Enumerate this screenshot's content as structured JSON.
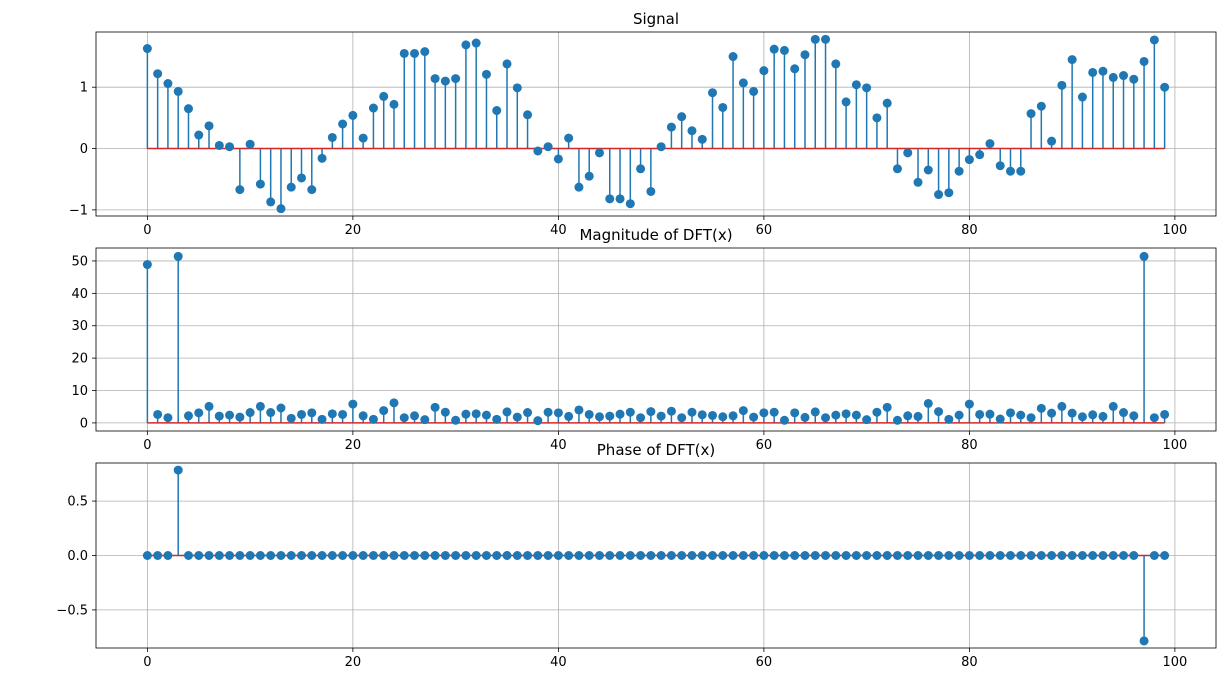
{
  "chart_data": [
    {
      "type": "stem",
      "title": "Signal",
      "xlim": [
        -5,
        104
      ],
      "ylim": [
        -1.1,
        1.9
      ],
      "xticks": [
        0,
        20,
        40,
        60,
        80,
        100
      ],
      "yticks": [
        -1,
        0,
        1
      ],
      "grid": true,
      "colors": {
        "marker": "#1f77b4",
        "stem": "#1f77b4",
        "baseline": "#d62728"
      },
      "x": [
        0,
        1,
        2,
        3,
        4,
        5,
        6,
        7,
        8,
        9,
        10,
        11,
        12,
        13,
        14,
        15,
        16,
        17,
        18,
        19,
        20,
        21,
        22,
        23,
        24,
        25,
        26,
        27,
        28,
        29,
        30,
        31,
        32,
        33,
        34,
        35,
        36,
        37,
        38,
        39,
        40,
        41,
        42,
        43,
        44,
        45,
        46,
        47,
        48,
        49,
        50,
        51,
        52,
        53,
        54,
        55,
        56,
        57,
        58,
        59,
        60,
        61,
        62,
        63,
        64,
        65,
        66,
        67,
        68,
        69,
        70,
        71,
        72,
        73,
        74,
        75,
        76,
        77,
        78,
        79,
        80,
        81,
        82,
        83,
        84,
        85,
        86,
        87,
        88,
        89,
        90,
        91,
        92,
        93,
        94,
        95,
        96,
        97,
        98,
        99
      ],
      "values": [
        1.63,
        1.22,
        1.06,
        0.93,
        0.65,
        0.22,
        0.37,
        0.05,
        0.03,
        -0.67,
        0.07,
        -0.58,
        -0.87,
        -0.98,
        -0.63,
        -0.48,
        -0.67,
        -0.16,
        0.18,
        0.4,
        0.54,
        0.17,
        0.66,
        0.85,
        0.72,
        1.55,
        1.55,
        1.58,
        1.14,
        1.1,
        1.14,
        1.69,
        1.72,
        1.21,
        0.62,
        1.38,
        0.99,
        0.55,
        -0.04,
        0.03,
        -0.17,
        0.17,
        -0.63,
        -0.45,
        -0.07,
        -0.82,
        -0.82,
        -0.9,
        -0.33,
        -0.7,
        0.03,
        0.35,
        0.52,
        0.29,
        0.15,
        0.91,
        0.67,
        1.5,
        1.07,
        0.93,
        1.27,
        1.62,
        1.6,
        1.3,
        1.53,
        1.78,
        1.78,
        1.38,
        0.76,
        1.04,
        0.99,
        0.5,
        0.74,
        -0.33,
        -0.07,
        -0.55,
        -0.35,
        -0.75,
        -0.72,
        -0.37,
        -0.18,
        -0.1,
        0.08,
        -0.28,
        -0.37,
        -0.37,
        0.57,
        0.69,
        0.12,
        1.03,
        1.45,
        0.84,
        1.24,
        1.26,
        1.16,
        1.19,
        1.13,
        1.42,
        1.77,
        1.0
      ]
    },
    {
      "type": "stem",
      "title": "Magnitude of DFT(x)",
      "xlim": [
        -5,
        104
      ],
      "ylim": [
        -2.5,
        54
      ],
      "xticks": [
        0,
        20,
        40,
        60,
        80,
        100
      ],
      "yticks": [
        0,
        10,
        20,
        30,
        40,
        50
      ],
      "grid": true,
      "colors": {
        "marker": "#1f77b4",
        "stem": "#1f77b4",
        "baseline": "#d62728"
      },
      "x": [
        0,
        1,
        2,
        3,
        4,
        5,
        6,
        7,
        8,
        9,
        10,
        11,
        12,
        13,
        14,
        15,
        16,
        17,
        18,
        19,
        20,
        21,
        22,
        23,
        24,
        25,
        26,
        27,
        28,
        29,
        30,
        31,
        32,
        33,
        34,
        35,
        36,
        37,
        38,
        39,
        40,
        41,
        42,
        43,
        44,
        45,
        46,
        47,
        48,
        49,
        50,
        51,
        52,
        53,
        54,
        55,
        56,
        57,
        58,
        59,
        60,
        61,
        62,
        63,
        64,
        65,
        66,
        67,
        68,
        69,
        70,
        71,
        72,
        73,
        74,
        75,
        76,
        77,
        78,
        79,
        80,
        81,
        82,
        83,
        84,
        85,
        86,
        87,
        88,
        89,
        90,
        91,
        92,
        93,
        94,
        95,
        96,
        97,
        98,
        99
      ],
      "values": [
        48.9,
        2.6,
        1.6,
        51.4,
        2.2,
        3.1,
        5.1,
        2.1,
        2.4,
        1.8,
        3.2,
        5.1,
        3.2,
        4.6,
        1.4,
        2.6,
        3.1,
        1.1,
        2.8,
        2.6,
        5.8,
        2.2,
        1.1,
        3.8,
        6.2,
        1.6,
        2.2,
        1.0,
        4.8,
        3.3,
        0.8,
        2.7,
        2.8,
        2.4,
        1.1,
        3.4,
        1.8,
        3.2,
        0.7,
        3.3,
        3.1,
        2.0,
        4.0,
        2.6,
        1.9,
        2.1,
        2.7,
        3.3,
        1.6,
        3.5,
        2.1,
        3.6,
        1.6,
        3.3,
        2.5,
        2.3,
        1.9,
        2.2,
        3.8,
        1.8,
        3.1,
        3.3,
        0.8,
        3.1,
        1.7,
        3.4,
        1.6,
        2.4,
        2.8,
        2.4,
        1.0,
        3.3,
        4.8,
        0.8,
        2.2,
        2.0,
        6.0,
        3.5,
        1.1,
        2.4,
        5.8,
        2.6,
        2.7,
        1.2,
        3.1,
        2.4,
        1.6,
        4.5,
        3.0,
        5.1,
        3.0,
        1.9,
        2.5,
        2.0,
        5.1,
        3.2,
        2.2,
        51.4,
        1.6,
        2.6
      ]
    },
    {
      "type": "stem",
      "title": "Phase of DFT(x)",
      "xlim": [
        -5,
        104
      ],
      "ylim": [
        -0.85,
        0.85
      ],
      "xticks": [
        0,
        20,
        40,
        60,
        80,
        100
      ],
      "yticks": [
        -0.5,
        0.0,
        0.5
      ],
      "ytick_labels": [
        "−0.5",
        "0.0",
        "0.5"
      ],
      "grid": true,
      "colors": {
        "marker": "#1f77b4",
        "stem": "#1f77b4",
        "baseline": "#d62728"
      },
      "x": [
        0,
        1,
        2,
        3,
        4,
        5,
        6,
        7,
        8,
        9,
        10,
        11,
        12,
        13,
        14,
        15,
        16,
        17,
        18,
        19,
        20,
        21,
        22,
        23,
        24,
        25,
        26,
        27,
        28,
        29,
        30,
        31,
        32,
        33,
        34,
        35,
        36,
        37,
        38,
        39,
        40,
        41,
        42,
        43,
        44,
        45,
        46,
        47,
        48,
        49,
        50,
        51,
        52,
        53,
        54,
        55,
        56,
        57,
        58,
        59,
        60,
        61,
        62,
        63,
        64,
        65,
        66,
        67,
        68,
        69,
        70,
        71,
        72,
        73,
        74,
        75,
        76,
        77,
        78,
        79,
        80,
        81,
        82,
        83,
        84,
        85,
        86,
        87,
        88,
        89,
        90,
        91,
        92,
        93,
        94,
        95,
        96,
        97,
        98,
        99
      ],
      "values": [
        0,
        0,
        0,
        0.785,
        0,
        0,
        0,
        0,
        0,
        0,
        0,
        0,
        0,
        0,
        0,
        0,
        0,
        0,
        0,
        0,
        0,
        0,
        0,
        0,
        0,
        0,
        0,
        0,
        0,
        0,
        0,
        0,
        0,
        0,
        0,
        0,
        0,
        0,
        0,
        0,
        0,
        0,
        0,
        0,
        0,
        0,
        0,
        0,
        0,
        0,
        0,
        0,
        0,
        0,
        0,
        0,
        0,
        0,
        0,
        0,
        0,
        0,
        0,
        0,
        0,
        0,
        0,
        0,
        0,
        0,
        0,
        0,
        0,
        0,
        0,
        0,
        0,
        0,
        0,
        0,
        0,
        0,
        0,
        0,
        0,
        0,
        0,
        0,
        0,
        0,
        0,
        0,
        0,
        0,
        0,
        0,
        0,
        -0.785,
        0,
        0
      ]
    }
  ]
}
